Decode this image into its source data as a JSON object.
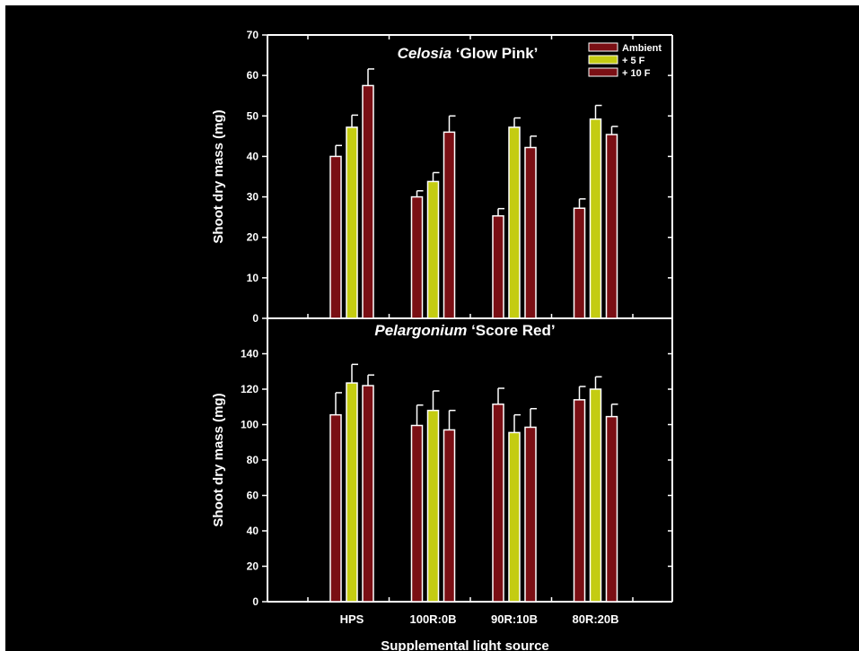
{
  "colors": {
    "background": "#000000",
    "axis": "#ffffff",
    "ambient": "#7a0f14",
    "plus5F": "#c4cc12",
    "plus10F": "#7a0f14"
  },
  "xlabel": "Supplemental light source",
  "categories": [
    "HPS",
    "100R:0B",
    "90R:10B",
    "80R:20B"
  ],
  "legend": [
    {
      "name": "Ambient",
      "color": "#7a0f14"
    },
    {
      "name": "+ 5 F",
      "color": "#c4cc12"
    },
    {
      "name": "+ 10 F",
      "color": "#7a0f14"
    }
  ],
  "chart_data": [
    {
      "type": "bar",
      "title_italic": "Celosia",
      "title_rest": " ‘Glow Pink’",
      "ylabel": "Shoot dry mass (mg)",
      "ylim": [
        0,
        70
      ],
      "yticks": [
        0,
        10,
        20,
        30,
        40,
        50,
        60,
        70
      ],
      "legend_position": "top-right",
      "categories": [
        "HPS",
        "100R:0B",
        "90R:10B",
        "80R:20B"
      ],
      "series": [
        {
          "name": "Ambient",
          "values": [
            40,
            30,
            25.3,
            27.2
          ],
          "errors": [
            2.7,
            1.5,
            1.8,
            2.3
          ]
        },
        {
          "name": "+ 5 F",
          "values": [
            47.2,
            33.8,
            47.2,
            49.2
          ],
          "errors": [
            3,
            2.2,
            2.3,
            3.4
          ]
        },
        {
          "name": "+ 10 F",
          "values": [
            57.5,
            46,
            42.2,
            45.4
          ],
          "errors": [
            4.1,
            4,
            2.8,
            2
          ]
        }
      ]
    },
    {
      "type": "bar",
      "title_italic": "Pelargonium",
      "title_rest": " ‘Score Red’",
      "ylabel": "Shoot dry mass (mg)",
      "ylim": [
        0,
        160
      ],
      "yticks": [
        0,
        20,
        40,
        60,
        80,
        100,
        120,
        140
      ],
      "categories": [
        "HPS",
        "100R:0B",
        "90R:10B",
        "80R:20B"
      ],
      "series": [
        {
          "name": "Ambient",
          "values": [
            105.5,
            99.5,
            111.5,
            114
          ],
          "errors": [
            12.5,
            11.5,
            9,
            7.5
          ]
        },
        {
          "name": "+ 5 F",
          "values": [
            123.5,
            108,
            95.5,
            120
          ],
          "errors": [
            10.5,
            11,
            10,
            7
          ]
        },
        {
          "name": "+ 10 F",
          "values": [
            122,
            97,
            98.5,
            104.5
          ],
          "errors": [
            6,
            11,
            10.5,
            7
          ]
        }
      ]
    }
  ]
}
